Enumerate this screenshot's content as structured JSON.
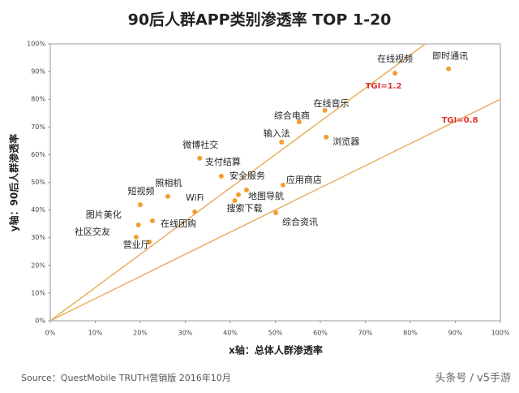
{
  "chart_data": {
    "type": "scatter",
    "title": "90后人群APP类别渗透率 TOP 1-20",
    "x_label": "x轴：总体人群渗透率",
    "y_label": "y轴：90后人群渗透率",
    "color": "#f0a030",
    "line_color": "#e8b060",
    "grid": false,
    "categories": [
      "即时通讯",
      "在线视频",
      "在线音乐",
      "综合电商",
      "浏览器",
      "输入法",
      "微博社交",
      "支付结算",
      "安全服务",
      "应用商店",
      "地图导航",
      "搜索下载",
      "综合资讯",
      "照相机",
      "WiFi",
      "短视频",
      "图片美化",
      "在线团购",
      "社区交友",
      "营业厅"
    ],
    "x": [
      88.5,
      76.6,
      61,
      55.3,
      61.3,
      51.4,
      33.2,
      38,
      43.6,
      51.7,
      41.8,
      41,
      50.1,
      26.1,
      32.1,
      20,
      19.6,
      22.7,
      19.1,
      22
    ],
    "values": [
      91,
      89.4,
      76,
      71.8,
      66.3,
      64.5,
      58.7,
      52.2,
      47.2,
      49,
      45.5,
      43.4,
      39,
      44.9,
      39.3,
      41.9,
      34.6,
      36.1,
      30.2,
      28.4
    ],
    "reference_lines": [
      {
        "label": "TGI=1.2",
        "slope": 1.2,
        "color": "#e03030"
      },
      {
        "label": "TGI=0.8",
        "slope": 0.8,
        "color": "#e03030"
      }
    ],
    "xlim": [
      0,
      100
    ],
    "ylim": [
      0,
      100
    ],
    "xticks": [
      {
        "value": 0,
        "label": "0%"
      },
      {
        "value": 10,
        "label": "10%"
      },
      {
        "value": 20,
        "label": "20%"
      },
      {
        "value": 30,
        "label": "30%"
      },
      {
        "value": 40,
        "label": "40%"
      },
      {
        "value": 50,
        "label": "50%"
      },
      {
        "value": 60,
        "label": "60%"
      },
      {
        "value": 70,
        "label": "70%"
      },
      {
        "value": 80,
        "label": "80%"
      },
      {
        "value": 90,
        "label": "90%"
      },
      {
        "value": 100,
        "label": "100%"
      }
    ],
    "yticks": [
      {
        "value": 0,
        "label": "0%"
      },
      {
        "value": 10,
        "label": "10%"
      },
      {
        "value": 20,
        "label": "20%"
      },
      {
        "value": 30,
        "label": "30%"
      },
      {
        "value": 40,
        "label": "40%"
      },
      {
        "value": 50,
        "label": "50%"
      },
      {
        "value": 60,
        "label": "60%"
      },
      {
        "value": 70,
        "label": "70%"
      },
      {
        "value": 80,
        "label": "80%"
      },
      {
        "value": 90,
        "label": "90%"
      },
      {
        "value": 100,
        "label": "100%"
      }
    ],
    "source": "Source：QuestMobile TRUTH营销版 2016年10月",
    "watermark": "头条号 / v5手游"
  }
}
